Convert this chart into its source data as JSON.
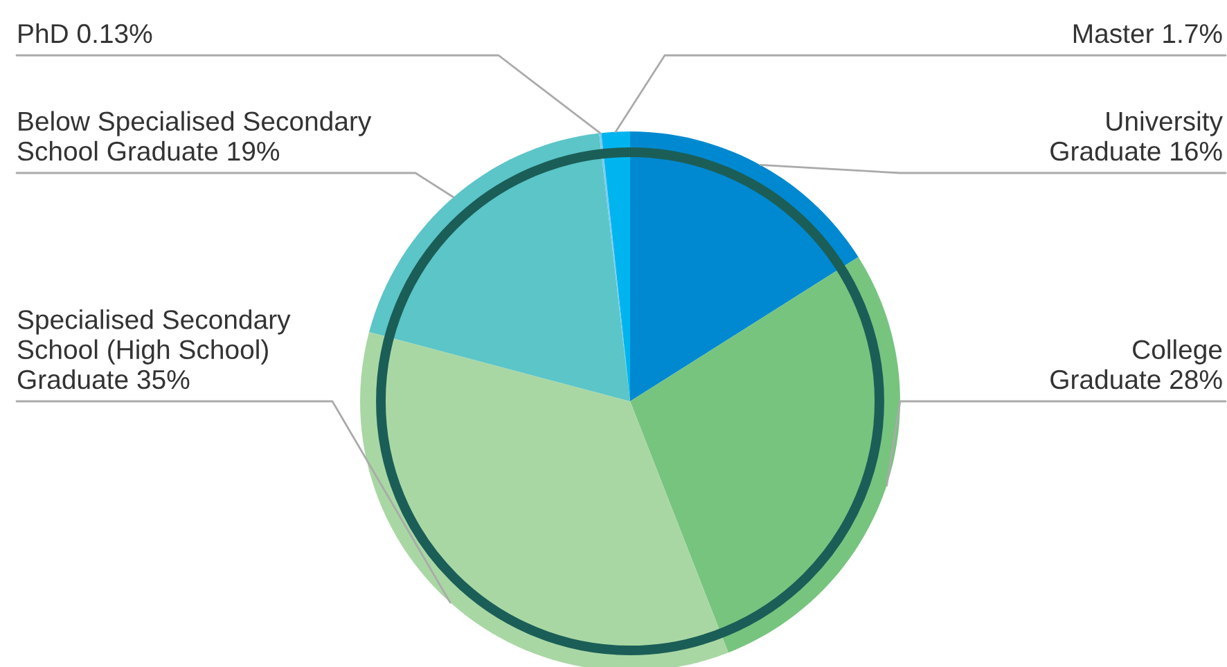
{
  "chart_data": {
    "type": "pie",
    "categories": [
      "University\nGraduate",
      "College\nGraduate",
      "Specialised Secondary\nSchool (High School)\nGraduate",
      "Below Specialised Secondary\nSchool Graduate",
      "PhD",
      "Master"
    ],
    "values": [
      16,
      28,
      35,
      19,
      0.13,
      1.7
    ],
    "value_labels": [
      "16%",
      "28%",
      "35%",
      "19%",
      "0.13%",
      "1.7%"
    ],
    "colors": [
      "#0089d0",
      "#77c47f",
      "#a9d7a4",
      "#5bc5c8",
      "#7ecbf0",
      "#00b5ef"
    ]
  }
}
